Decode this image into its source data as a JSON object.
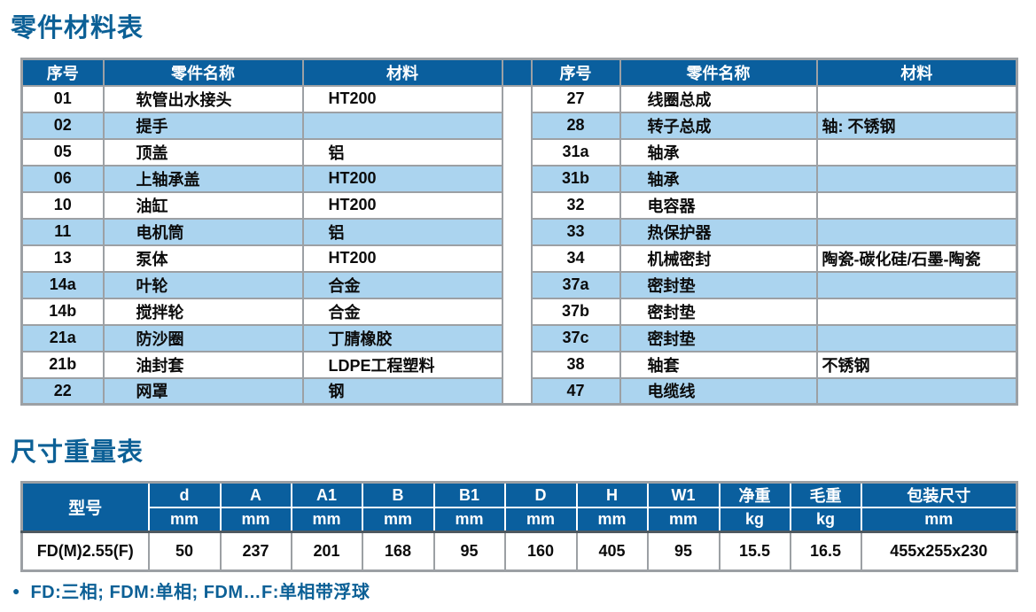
{
  "page": {
    "parts_title": "零件材料表",
    "dims_title": "尺寸重量表",
    "footnote_bullet": "●",
    "footnote_text": "FD:三相; FDM:单相; FDM…F:单相带浮球"
  },
  "colors": {
    "header_bg": "#0A5F9E",
    "stripe_bg": "#ABD4EF",
    "border_gray": "#9CA0A4",
    "title_blue": "#0C6096"
  },
  "parts_table": {
    "headers": [
      "序号",
      "零件名称",
      "材料"
    ],
    "left_rows": [
      [
        "01",
        "软管出水接头",
        "HT200"
      ],
      [
        "02",
        "提手",
        ""
      ],
      [
        "05",
        "顶盖",
        "铝"
      ],
      [
        "06",
        "上轴承盖",
        "HT200"
      ],
      [
        "10",
        "油缸",
        "HT200"
      ],
      [
        "11",
        "电机筒",
        "铝"
      ],
      [
        "13",
        "泵体",
        "HT200"
      ],
      [
        "14a",
        "叶轮",
        "合金"
      ],
      [
        "14b",
        "搅拌轮",
        "合金"
      ],
      [
        "21a",
        "防沙圈",
        "丁腈橡胶"
      ],
      [
        "21b",
        "油封套",
        "LDPE工程塑料"
      ],
      [
        "22",
        "网罩",
        "钢"
      ]
    ],
    "right_rows": [
      [
        "27",
        "线圈总成",
        ""
      ],
      [
        "28",
        "转子总成",
        "轴: 不锈钢"
      ],
      [
        "31a",
        "轴承",
        ""
      ],
      [
        "31b",
        "轴承",
        ""
      ],
      [
        "32",
        "电容器",
        ""
      ],
      [
        "33",
        "热保护器",
        ""
      ],
      [
        "34",
        "机械密封",
        "陶瓷-碳化硅/石墨-陶瓷"
      ],
      [
        "37a",
        "密封垫",
        ""
      ],
      [
        "37b",
        "密封垫",
        ""
      ],
      [
        "37c",
        "密封垫",
        ""
      ],
      [
        "38",
        "轴套",
        "不锈钢"
      ],
      [
        "47",
        "电缆线",
        ""
      ]
    ]
  },
  "dims_table": {
    "model_header": "型号",
    "columns": [
      {
        "label": "d",
        "unit": "mm"
      },
      {
        "label": "A",
        "unit": "mm"
      },
      {
        "label": "A1",
        "unit": "mm"
      },
      {
        "label": "B",
        "unit": "mm"
      },
      {
        "label": "B1",
        "unit": "mm"
      },
      {
        "label": "D",
        "unit": "mm"
      },
      {
        "label": "H",
        "unit": "mm"
      },
      {
        "label": "W1",
        "unit": "mm"
      },
      {
        "label": "净重",
        "unit": "kg"
      },
      {
        "label": "毛重",
        "unit": "kg"
      },
      {
        "label": "包装尺寸",
        "unit": "mm"
      }
    ],
    "rows": [
      {
        "model": "FD(M)2.55(F)",
        "values": [
          "50",
          "237",
          "201",
          "168",
          "95",
          "160",
          "405",
          "95",
          "15.5",
          "16.5",
          "455x255x230"
        ]
      }
    ]
  }
}
